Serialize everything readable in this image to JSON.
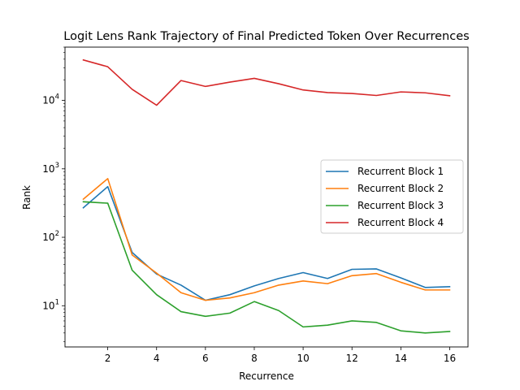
{
  "chart_data": {
    "type": "line",
    "title": "Logit Lens Rank Trajectory of Final Predicted Token Over Recurrences",
    "xlabel": "Recurrence",
    "ylabel": "Rank",
    "yscale": "log",
    "xlim": [
      0.25,
      16.75
    ],
    "ylim": [
      2.5,
      60000
    ],
    "xticks": [
      2,
      4,
      6,
      8,
      10,
      12,
      14,
      16
    ],
    "yticks": [
      {
        "base": "10",
        "exp": "1",
        "value": 10
      },
      {
        "base": "10",
        "exp": "2",
        "value": 100
      },
      {
        "base": "10",
        "exp": "3",
        "value": 1000
      },
      {
        "base": "10",
        "exp": "4",
        "value": 10000
      }
    ],
    "legend_position": "center-right",
    "grid": false,
    "x": [
      1,
      2,
      3,
      4,
      5,
      6,
      7,
      8,
      9,
      10,
      11,
      12,
      13,
      14,
      15,
      16
    ],
    "series": [
      {
        "name": "Recurrent Block 1",
        "color": "#1f77b4",
        "values": [
          270,
          550,
          60,
          29,
          20,
          12,
          14.5,
          19.5,
          25,
          30.5,
          25,
          34,
          34.5,
          25.5,
          18.5,
          19
        ]
      },
      {
        "name": "Recurrent Block 2",
        "color": "#ff7f0e",
        "values": [
          360,
          720,
          55,
          30,
          15.5,
          12,
          13,
          15.5,
          20,
          23,
          21,
          27.5,
          29.5,
          22,
          17,
          17
        ]
      },
      {
        "name": "Recurrent Block 3",
        "color": "#2ca02c",
        "values": [
          330,
          315,
          33,
          14.5,
          8.2,
          7,
          7.8,
          11.5,
          8.5,
          4.9,
          5.2,
          6,
          5.7,
          4.3,
          4,
          4.2
        ]
      },
      {
        "name": "Recurrent Block 4",
        "color": "#d62728",
        "values": [
          39000,
          31000,
          14500,
          8500,
          19500,
          16000,
          18500,
          21000,
          17500,
          14200,
          13000,
          12600,
          11800,
          13300,
          12900,
          11700
        ]
      }
    ]
  }
}
